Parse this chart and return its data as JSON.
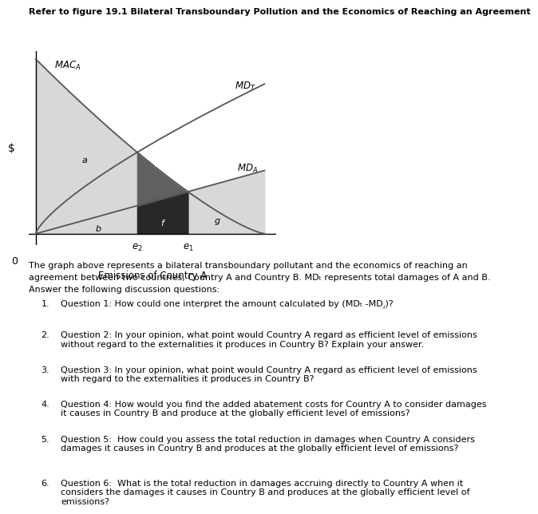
{
  "title": "Refer to figure 19.1 Bilateral Transboundary Pollution and the Economics of Reaching an Agreement",
  "xlabel": "Emissions of Country A",
  "ylabel": "$",
  "mac_label": "MAC⁁",
  "mdt_label": "MDₜ",
  "mda_label": "MD⁁",
  "e1_label": "e₁",
  "e2_label": "e₂",
  "preamble_line1": "The graph above represents a bilateral transboundary pollutant and the economics of reaching an",
  "preamble_line2": "agreement between two countries, Country A and Country B. MDₜ represents total damages of A and B.",
  "preamble_line3": "Answer the following discussion questions:",
  "questions": [
    "Question 1: How could one interpret the amount calculated by (MDₜ -MD⁁)?",
    "Question 2: In your opinion, what point would Country A regard as efficient level of emissions\nwithout regard to the externalities it produces in Country B? Explain your answer.",
    "Question 3: In your opinion, what point would Country A regard as efficient level of emissions\nwith regard to the externalities it produces in Country B?",
    "Question 4: How would you find the added abatement costs for Country A to consider damages\nit causes in Country B and produce at the globally efficient level of emissions?",
    "Question 5:  How could you assess the total reduction in damages when Country A considers\ndamages it causes in Country B and produces at the globally efficient level of emissions?",
    "Question 6:  What is the total reduction in damages accruing directly to Country A when it\nconsiders the damages it causes in Country B and produces at the globally efficient level of\nemissions?"
  ],
  "bg_color": "#ffffff",
  "line_color": "#555555",
  "color_light": "#d8d8d8",
  "color_mid_light": "#b8b8b8",
  "color_dark": "#606060",
  "color_darkest": "#282828",
  "color_med_dark": "#888888"
}
